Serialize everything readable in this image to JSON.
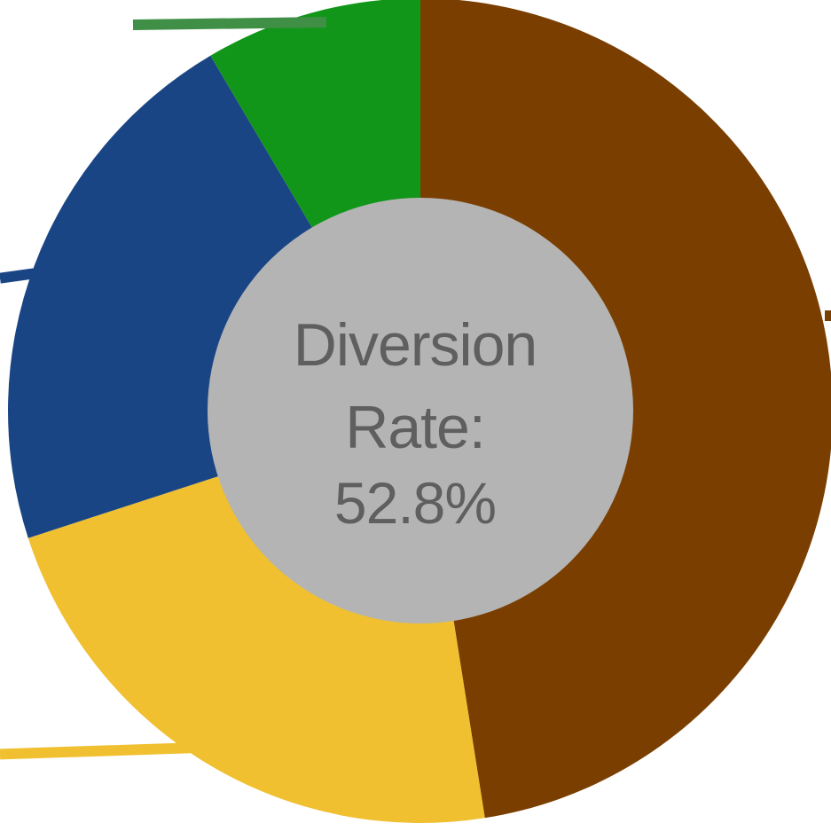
{
  "chart_data": {
    "type": "pie",
    "subtype": "donut",
    "center_label": {
      "line1": "Diversion",
      "line2": "Rate:",
      "value": "52.8%"
    },
    "slices": [
      {
        "value": 47.5,
        "color": "#7a3f00",
        "leader_side": "right"
      },
      {
        "value": 22.5,
        "color": "#f0c030",
        "leader_side": "left"
      },
      {
        "value": 21.5,
        "color": "#1a4585",
        "leader_side": "left"
      },
      {
        "value": 8.5,
        "color": "#12961a",
        "leader_side": "top"
      }
    ],
    "start_angle_deg": 0,
    "direction": "clockwise",
    "center_color": "#b4b4b4",
    "legend": "none"
  }
}
